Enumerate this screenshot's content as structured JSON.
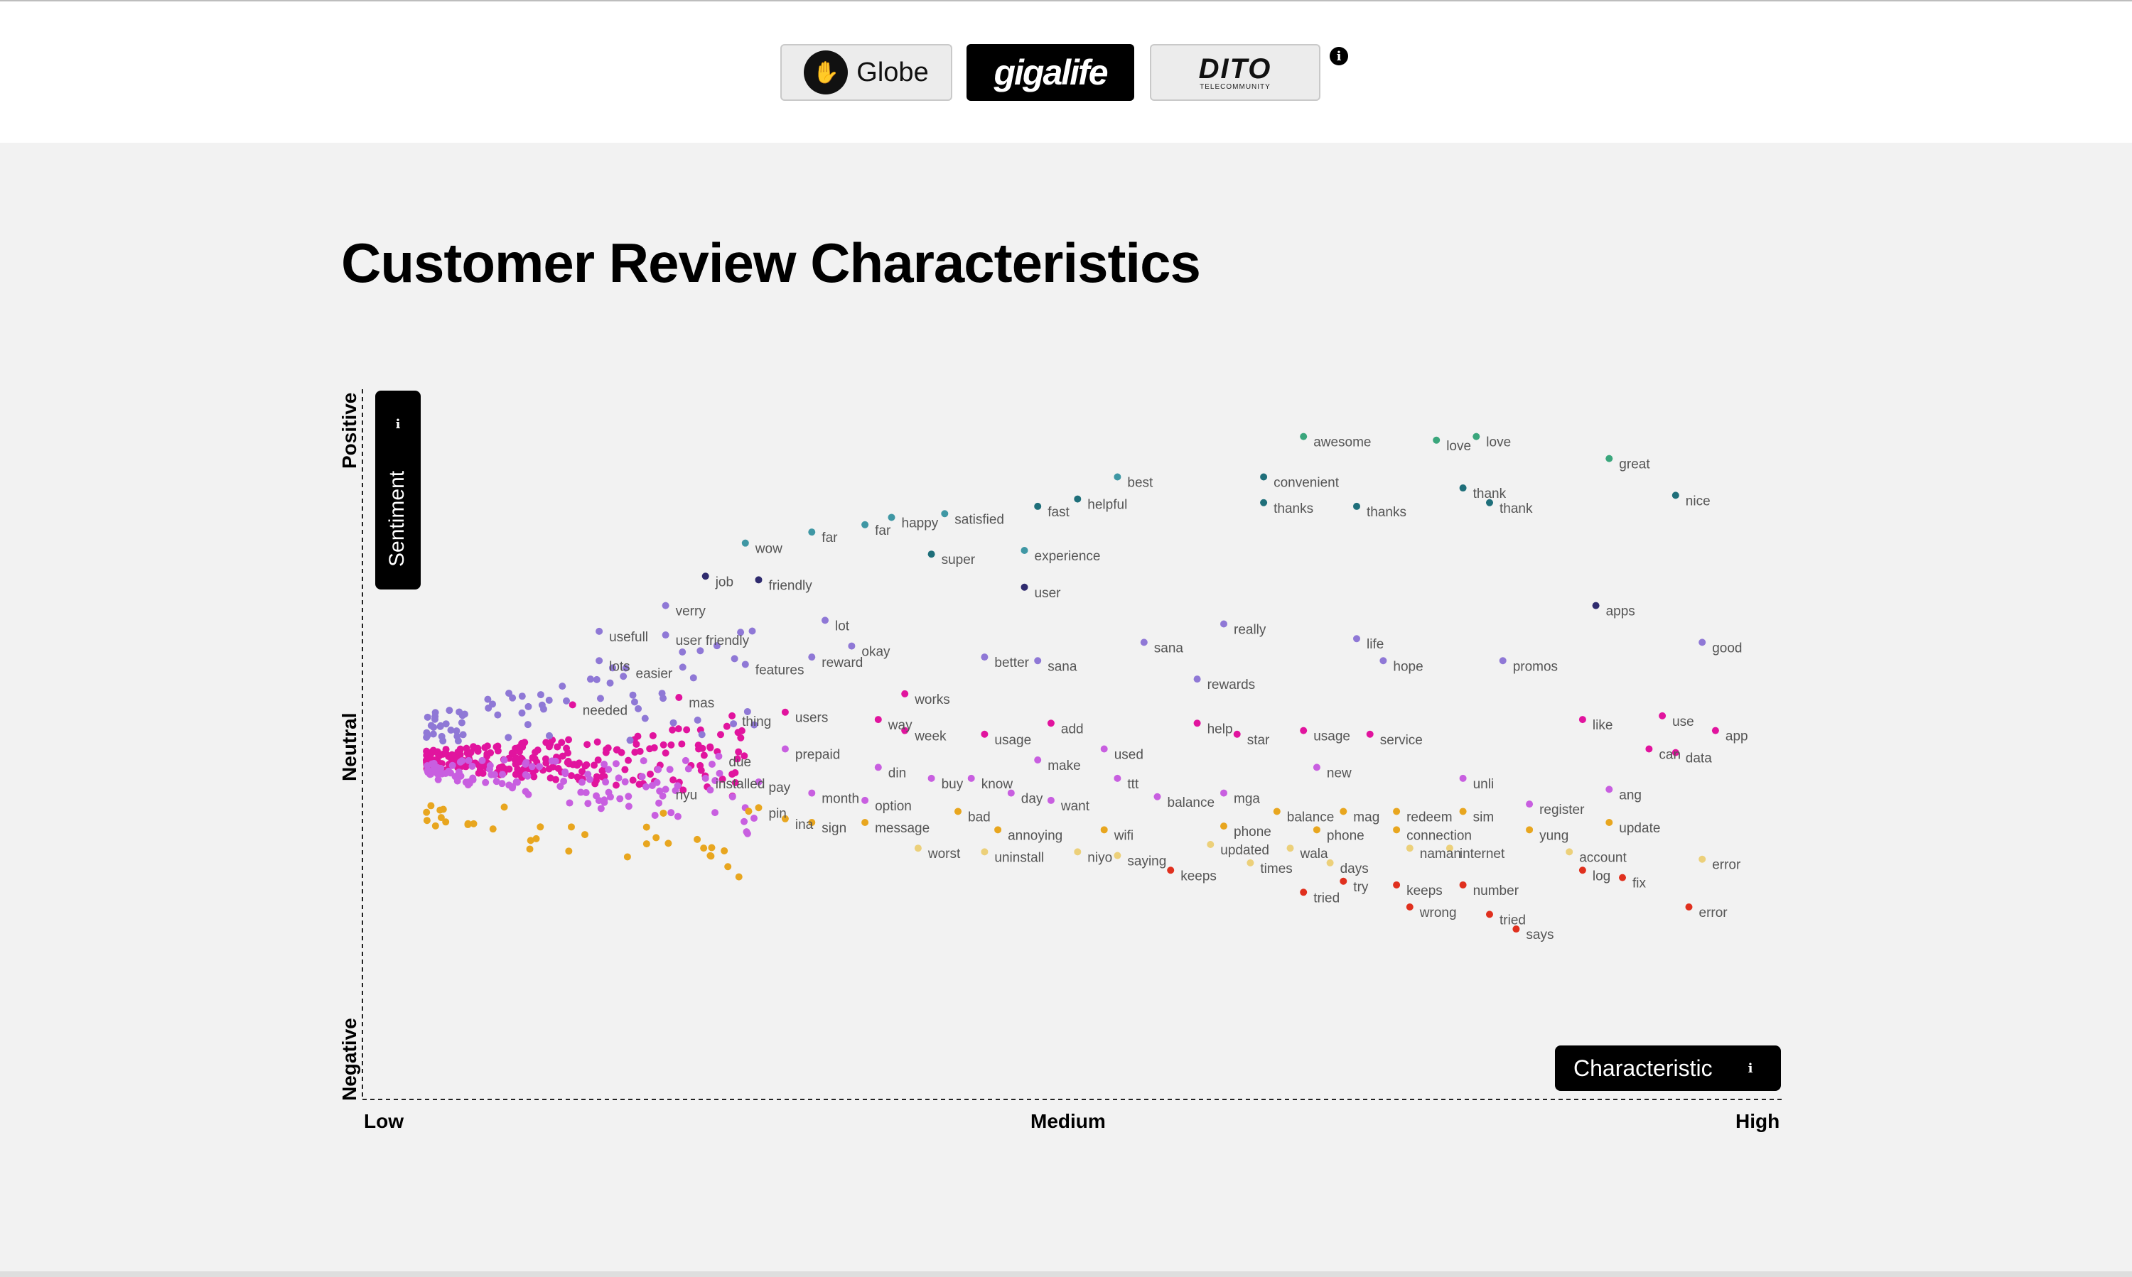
{
  "brands": [
    {
      "name": "Globe"
    },
    {
      "name": "gigalife"
    },
    {
      "name": "DITO",
      "sub": "TELECOMMUNITY"
    }
  ],
  "icons": {
    "info": "info-icon",
    "globe_logo": "globe-hand-icon"
  },
  "title": "Customer Review Characteristics",
  "axes": {
    "y_ticks": [
      "Positive",
      "Neutral",
      "Negative"
    ],
    "x_ticks": [
      "Low",
      "Medium",
      "High"
    ],
    "y_button": "Sentiment",
    "x_button": "Characteristic"
  },
  "colors": {
    "pos_green": "#3aa67c",
    "pos_teal": "#1f6f7a",
    "pos_cyan": "#3f97a4",
    "navy": "#2f2b6e",
    "lavender": "#8f78d6",
    "magenta": "#e1149e",
    "orchid": "#c85fe0",
    "orange": "#e8a61f",
    "pale_yellow": "#ecd07a",
    "red": "#e0301e"
  },
  "chart_data": {
    "type": "scatter",
    "xlabel": "",
    "ylabel": "",
    "x_ticks": [
      "Low",
      "Medium",
      "High"
    ],
    "y_ticks": [
      "Positive",
      "Neutral",
      "Negative"
    ],
    "xlim": [
      0,
      1
    ],
    "ylim": [
      -1,
      1
    ],
    "grid": false,
    "words": [
      {
        "w": "awesome",
        "x": 0.66,
        "y": 0.88,
        "c": "#3aa67c"
      },
      {
        "w": "love",
        "x": 0.76,
        "y": 0.87,
        "c": "#3aa67c"
      },
      {
        "w": "love",
        "x": 0.79,
        "y": 0.88,
        "c": "#3aa67c"
      },
      {
        "w": "great",
        "x": 0.89,
        "y": 0.82,
        "c": "#3aa67c"
      },
      {
        "w": "best",
        "x": 0.52,
        "y": 0.77,
        "c": "#3f97a4"
      },
      {
        "w": "convenient",
        "x": 0.63,
        "y": 0.77,
        "c": "#1f6f7a"
      },
      {
        "w": "thank",
        "x": 0.78,
        "y": 0.74,
        "c": "#1f6f7a"
      },
      {
        "w": "nice",
        "x": 0.94,
        "y": 0.72,
        "c": "#1f6f7a"
      },
      {
        "w": "helpful",
        "x": 0.49,
        "y": 0.71,
        "c": "#1f6f7a"
      },
      {
        "w": "fast",
        "x": 0.46,
        "y": 0.69,
        "c": "#1f6f7a"
      },
      {
        "w": "thanks",
        "x": 0.63,
        "y": 0.7,
        "c": "#1f6f7a"
      },
      {
        "w": "thanks",
        "x": 0.7,
        "y": 0.69,
        "c": "#1f6f7a"
      },
      {
        "w": "thank",
        "x": 0.8,
        "y": 0.7,
        "c": "#1f6f7a"
      },
      {
        "w": "happy",
        "x": 0.35,
        "y": 0.66,
        "c": "#3f97a4"
      },
      {
        "w": "satisfied",
        "x": 0.39,
        "y": 0.67,
        "c": "#3f97a4"
      },
      {
        "w": "far",
        "x": 0.33,
        "y": 0.64,
        "c": "#3f97a4"
      },
      {
        "w": "far",
        "x": 0.29,
        "y": 0.62,
        "c": "#3f97a4"
      },
      {
        "w": "wow",
        "x": 0.24,
        "y": 0.59,
        "c": "#3f97a4"
      },
      {
        "w": "super",
        "x": 0.38,
        "y": 0.56,
        "c": "#1f6f7a"
      },
      {
        "w": "experience",
        "x": 0.45,
        "y": 0.57,
        "c": "#3f97a4"
      },
      {
        "w": "job",
        "x": 0.21,
        "y": 0.5,
        "c": "#2f2b6e"
      },
      {
        "w": "friendly",
        "x": 0.25,
        "y": 0.49,
        "c": "#2f2b6e"
      },
      {
        "w": "user",
        "x": 0.45,
        "y": 0.47,
        "c": "#2f2b6e"
      },
      {
        "w": "apps",
        "x": 0.88,
        "y": 0.42,
        "c": "#2f2b6e"
      },
      {
        "w": "verry",
        "x": 0.18,
        "y": 0.42,
        "c": "#8f78d6"
      },
      {
        "w": "usefull",
        "x": 0.13,
        "y": 0.35,
        "c": "#8f78d6"
      },
      {
        "w": "user friendly",
        "x": 0.18,
        "y": 0.34,
        "c": "#8f78d6"
      },
      {
        "w": "lot",
        "x": 0.3,
        "y": 0.38,
        "c": "#8f78d6"
      },
      {
        "w": "really",
        "x": 0.6,
        "y": 0.37,
        "c": "#8f78d6"
      },
      {
        "w": "life",
        "x": 0.7,
        "y": 0.33,
        "c": "#8f78d6"
      },
      {
        "w": "good",
        "x": 0.96,
        "y": 0.32,
        "c": "#8f78d6"
      },
      {
        "w": "okay",
        "x": 0.32,
        "y": 0.31,
        "c": "#8f78d6"
      },
      {
        "w": "sana",
        "x": 0.54,
        "y": 0.32,
        "c": "#8f78d6"
      },
      {
        "w": "lots",
        "x": 0.13,
        "y": 0.27,
        "c": "#8f78d6"
      },
      {
        "w": "easier",
        "x": 0.15,
        "y": 0.25,
        "c": "#8f78d6"
      },
      {
        "w": "features",
        "x": 0.24,
        "y": 0.26,
        "c": "#8f78d6"
      },
      {
        "w": "reward",
        "x": 0.29,
        "y": 0.28,
        "c": "#8f78d6"
      },
      {
        "w": "better",
        "x": 0.42,
        "y": 0.28,
        "c": "#8f78d6"
      },
      {
        "w": "sana",
        "x": 0.46,
        "y": 0.27,
        "c": "#8f78d6"
      },
      {
        "w": "hope",
        "x": 0.72,
        "y": 0.27,
        "c": "#8f78d6"
      },
      {
        "w": "promos",
        "x": 0.81,
        "y": 0.27,
        "c": "#8f78d6"
      },
      {
        "w": "rewards",
        "x": 0.58,
        "y": 0.22,
        "c": "#8f78d6"
      },
      {
        "w": "works",
        "x": 0.36,
        "y": 0.18,
        "c": "#e1149e"
      },
      {
        "w": "mas",
        "x": 0.19,
        "y": 0.17,
        "c": "#e1149e"
      },
      {
        "w": "users",
        "x": 0.27,
        "y": 0.13,
        "c": "#e1149e"
      },
      {
        "w": "needed",
        "x": 0.11,
        "y": 0.15,
        "c": "#e1149e"
      },
      {
        "w": "thing",
        "x": 0.23,
        "y": 0.12,
        "c": "#e1149e"
      },
      {
        "w": "way",
        "x": 0.34,
        "y": 0.11,
        "c": "#e1149e"
      },
      {
        "w": "week",
        "x": 0.36,
        "y": 0.08,
        "c": "#e1149e"
      },
      {
        "w": "usage",
        "x": 0.42,
        "y": 0.07,
        "c": "#e1149e"
      },
      {
        "w": "add",
        "x": 0.47,
        "y": 0.1,
        "c": "#e1149e"
      },
      {
        "w": "help",
        "x": 0.58,
        "y": 0.1,
        "c": "#e1149e"
      },
      {
        "w": "star",
        "x": 0.61,
        "y": 0.07,
        "c": "#e1149e"
      },
      {
        "w": "usage",
        "x": 0.66,
        "y": 0.08,
        "c": "#e1149e"
      },
      {
        "w": "service",
        "x": 0.71,
        "y": 0.07,
        "c": "#e1149e"
      },
      {
        "w": "like",
        "x": 0.87,
        "y": 0.11,
        "c": "#e1149e"
      },
      {
        "w": "use",
        "x": 0.93,
        "y": 0.12,
        "c": "#e1149e"
      },
      {
        "w": "app",
        "x": 0.97,
        "y": 0.08,
        "c": "#e1149e"
      },
      {
        "w": "can",
        "x": 0.92,
        "y": 0.03,
        "c": "#e1149e"
      },
      {
        "w": "data",
        "x": 0.94,
        "y": 0.02,
        "c": "#e1149e"
      },
      {
        "w": "used",
        "x": 0.51,
        "y": 0.03,
        "c": "#c85fe0"
      },
      {
        "w": "prepaid",
        "x": 0.27,
        "y": 0.03,
        "c": "#c85fe0"
      },
      {
        "w": "due",
        "x": 0.22,
        "y": 0.01,
        "c": "#c85fe0"
      },
      {
        "w": "make",
        "x": 0.46,
        "y": 0.0,
        "c": "#c85fe0"
      },
      {
        "w": "din",
        "x": 0.34,
        "y": -0.02,
        "c": "#c85fe0"
      },
      {
        "w": "new",
        "x": 0.67,
        "y": -0.02,
        "c": "#c85fe0"
      },
      {
        "w": "buy",
        "x": 0.38,
        "y": -0.05,
        "c": "#c85fe0"
      },
      {
        "w": "know",
        "x": 0.41,
        "y": -0.05,
        "c": "#c85fe0"
      },
      {
        "w": "ttt",
        "x": 0.52,
        "y": -0.05,
        "c": "#c85fe0"
      },
      {
        "w": "unli",
        "x": 0.78,
        "y": -0.05,
        "c": "#c85fe0"
      },
      {
        "w": "installed",
        "x": 0.21,
        "y": -0.05,
        "c": "#c85fe0"
      },
      {
        "w": "pay",
        "x": 0.25,
        "y": -0.06,
        "c": "#c85fe0"
      },
      {
        "w": "nyu",
        "x": 0.18,
        "y": -0.08,
        "c": "#c85fe0"
      },
      {
        "w": "month",
        "x": 0.29,
        "y": -0.09,
        "c": "#c85fe0"
      },
      {
        "w": "day",
        "x": 0.44,
        "y": -0.09,
        "c": "#c85fe0"
      },
      {
        "w": "balance",
        "x": 0.55,
        "y": -0.1,
        "c": "#c85fe0"
      },
      {
        "w": "mga",
        "x": 0.6,
        "y": -0.09,
        "c": "#c85fe0"
      },
      {
        "w": "ang",
        "x": 0.89,
        "y": -0.08,
        "c": "#c85fe0"
      },
      {
        "w": "want",
        "x": 0.47,
        "y": -0.11,
        "c": "#c85fe0"
      },
      {
        "w": "option",
        "x": 0.33,
        "y": -0.11,
        "c": "#c85fe0"
      },
      {
        "w": "register",
        "x": 0.83,
        "y": -0.12,
        "c": "#c85fe0"
      },
      {
        "w": "pin",
        "x": 0.25,
        "y": -0.13,
        "c": "#e8a61f"
      },
      {
        "w": "bad",
        "x": 0.4,
        "y": -0.14,
        "c": "#e8a61f"
      },
      {
        "w": "balance",
        "x": 0.64,
        "y": -0.14,
        "c": "#e8a61f"
      },
      {
        "w": "mag",
        "x": 0.69,
        "y": -0.14,
        "c": "#e8a61f"
      },
      {
        "w": "redeem",
        "x": 0.73,
        "y": -0.14,
        "c": "#e8a61f"
      },
      {
        "w": "sim",
        "x": 0.78,
        "y": -0.14,
        "c": "#e8a61f"
      },
      {
        "w": "ina",
        "x": 0.27,
        "y": -0.16,
        "c": "#e8a61f"
      },
      {
        "w": "sign",
        "x": 0.29,
        "y": -0.17,
        "c": "#e8a61f"
      },
      {
        "w": "message",
        "x": 0.33,
        "y": -0.17,
        "c": "#e8a61f"
      },
      {
        "w": "update",
        "x": 0.89,
        "y": -0.17,
        "c": "#e8a61f"
      },
      {
        "w": "annoying",
        "x": 0.43,
        "y": -0.19,
        "c": "#e8a61f"
      },
      {
        "w": "wifi",
        "x": 0.51,
        "y": -0.19,
        "c": "#e8a61f"
      },
      {
        "w": "phone",
        "x": 0.6,
        "y": -0.18,
        "c": "#e8a61f"
      },
      {
        "w": "phone",
        "x": 0.67,
        "y": -0.19,
        "c": "#e8a61f"
      },
      {
        "w": "connection",
        "x": 0.73,
        "y": -0.19,
        "c": "#e8a61f"
      },
      {
        "w": "yung",
        "x": 0.83,
        "y": -0.19,
        "c": "#e8a61f"
      },
      {
        "w": "worst",
        "x": 0.37,
        "y": -0.24,
        "c": "#ecd07a"
      },
      {
        "w": "uninstall",
        "x": 0.42,
        "y": -0.25,
        "c": "#ecd07a"
      },
      {
        "w": "niyo",
        "x": 0.49,
        "y": -0.25,
        "c": "#ecd07a"
      },
      {
        "w": "updated",
        "x": 0.59,
        "y": -0.23,
        "c": "#ecd07a"
      },
      {
        "w": "wala",
        "x": 0.65,
        "y": -0.24,
        "c": "#ecd07a"
      },
      {
        "w": "naman",
        "x": 0.74,
        "y": -0.24,
        "c": "#ecd07a"
      },
      {
        "w": "internet",
        "x": 0.77,
        "y": -0.24,
        "c": "#ecd07a"
      },
      {
        "w": "account",
        "x": 0.86,
        "y": -0.25,
        "c": "#ecd07a"
      },
      {
        "w": "error",
        "x": 0.96,
        "y": -0.27,
        "c": "#ecd07a"
      },
      {
        "w": "saying",
        "x": 0.52,
        "y": -0.26,
        "c": "#ecd07a"
      },
      {
        "w": "times",
        "x": 0.62,
        "y": -0.28,
        "c": "#ecd07a"
      },
      {
        "w": "days",
        "x": 0.68,
        "y": -0.28,
        "c": "#ecd07a"
      },
      {
        "w": "keeps",
        "x": 0.56,
        "y": -0.3,
        "c": "#e0301e"
      },
      {
        "w": "log",
        "x": 0.87,
        "y": -0.3,
        "c": "#e0301e"
      },
      {
        "w": "fix",
        "x": 0.9,
        "y": -0.32,
        "c": "#e0301e"
      },
      {
        "w": "try",
        "x": 0.69,
        "y": -0.33,
        "c": "#e0301e"
      },
      {
        "w": "keeps",
        "x": 0.73,
        "y": -0.34,
        "c": "#e0301e"
      },
      {
        "w": "number",
        "x": 0.78,
        "y": -0.34,
        "c": "#e0301e"
      },
      {
        "w": "tried",
        "x": 0.66,
        "y": -0.36,
        "c": "#e0301e"
      },
      {
        "w": "wrong",
        "x": 0.74,
        "y": -0.4,
        "c": "#e0301e"
      },
      {
        "w": "error",
        "x": 0.95,
        "y": -0.4,
        "c": "#e0301e"
      },
      {
        "w": "tried",
        "x": 0.8,
        "y": -0.42,
        "c": "#e0301e"
      },
      {
        "w": "says",
        "x": 0.82,
        "y": -0.46,
        "c": "#e0301e"
      }
    ]
  }
}
